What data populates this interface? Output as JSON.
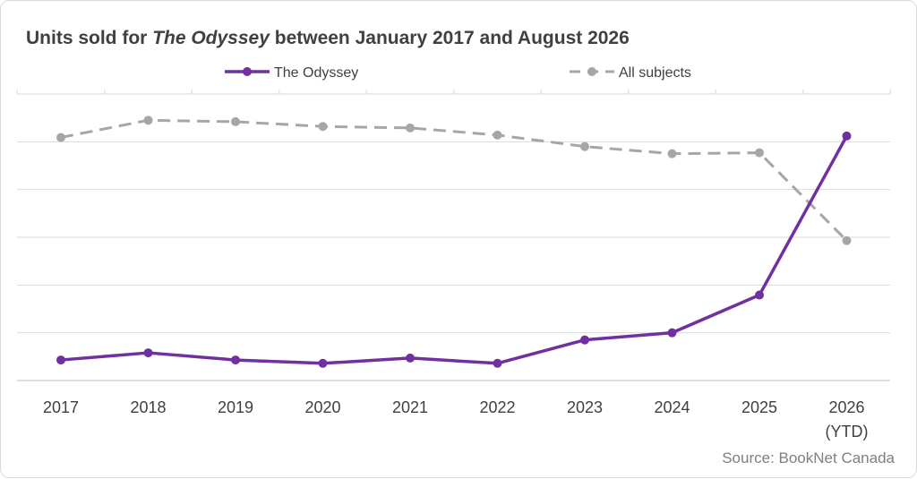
{
  "chart_data": {
    "type": "line",
    "title_parts": [
      "Units sold for ",
      "The Odyssey",
      " between January 2017 and August 2026"
    ],
    "categories": [
      "2017",
      "2018",
      "2019",
      "2020",
      "2021",
      "2022",
      "2023",
      "2024",
      "2025",
      "2026"
    ],
    "category_sublabels": [
      "",
      "",
      "",
      "",
      "",
      "",
      "",
      "",
      "",
      "(YTD)"
    ],
    "ylim": [
      0,
      6
    ],
    "y_tick_labels_shown": false,
    "grid": true,
    "legend_position": "top-center",
    "series": [
      {
        "name": "The Odyssey",
        "color": "#7030a0",
        "style": "solid",
        "values": [
          0.43,
          0.58,
          0.43,
          0.36,
          0.47,
          0.36,
          0.85,
          1.0,
          1.79,
          5.12
        ]
      },
      {
        "name": "All subjects",
        "color": "#a6a6a6",
        "style": "dashed",
        "values": [
          5.09,
          5.45,
          5.42,
          5.32,
          5.29,
          5.14,
          4.9,
          4.75,
          4.77,
          2.93
        ]
      }
    ],
    "source": "Source: BookNet Canada"
  }
}
